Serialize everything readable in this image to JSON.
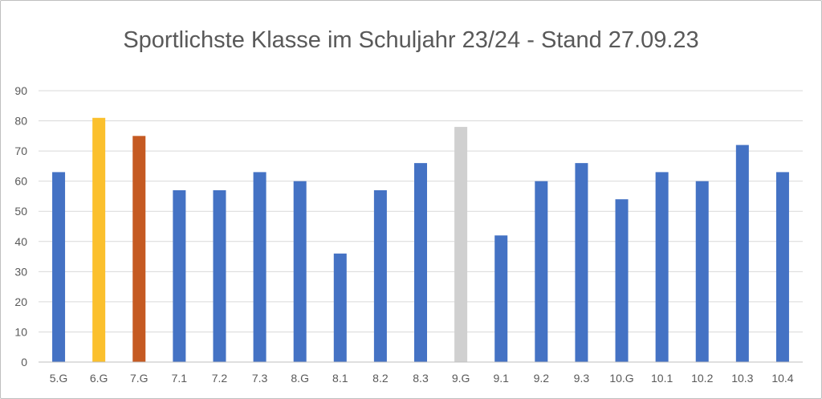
{
  "chart_data": {
    "type": "bar",
    "title": "Sportlichste Klasse im Schuljahr 23/24 - Stand 27.09.23",
    "xlabel": "",
    "ylabel": "",
    "categories": [
      "5.G",
      "6.G",
      "7.G",
      "7.1",
      "7.2",
      "7.3",
      "8.G",
      "8.1",
      "8.2",
      "8.3",
      "9.G",
      "9.1",
      "9.2",
      "9.3",
      "10.G",
      "10.1",
      "10.2",
      "10.3",
      "10.4"
    ],
    "values": [
      63,
      81,
      75,
      57,
      57,
      63,
      60,
      36,
      57,
      66,
      78,
      42,
      60,
      66,
      54,
      63,
      60,
      72,
      63
    ],
    "highlight_colors": {
      "6.G": "#fbc02d",
      "7.G": "#c55a22",
      "9.G": "#d0d0d0"
    },
    "default_color": "#4472c4",
    "ylim": [
      0,
      90
    ],
    "yticks": [
      0,
      10,
      20,
      30,
      40,
      50,
      60,
      70,
      80,
      90
    ],
    "grid": true,
    "legend": "none"
  }
}
